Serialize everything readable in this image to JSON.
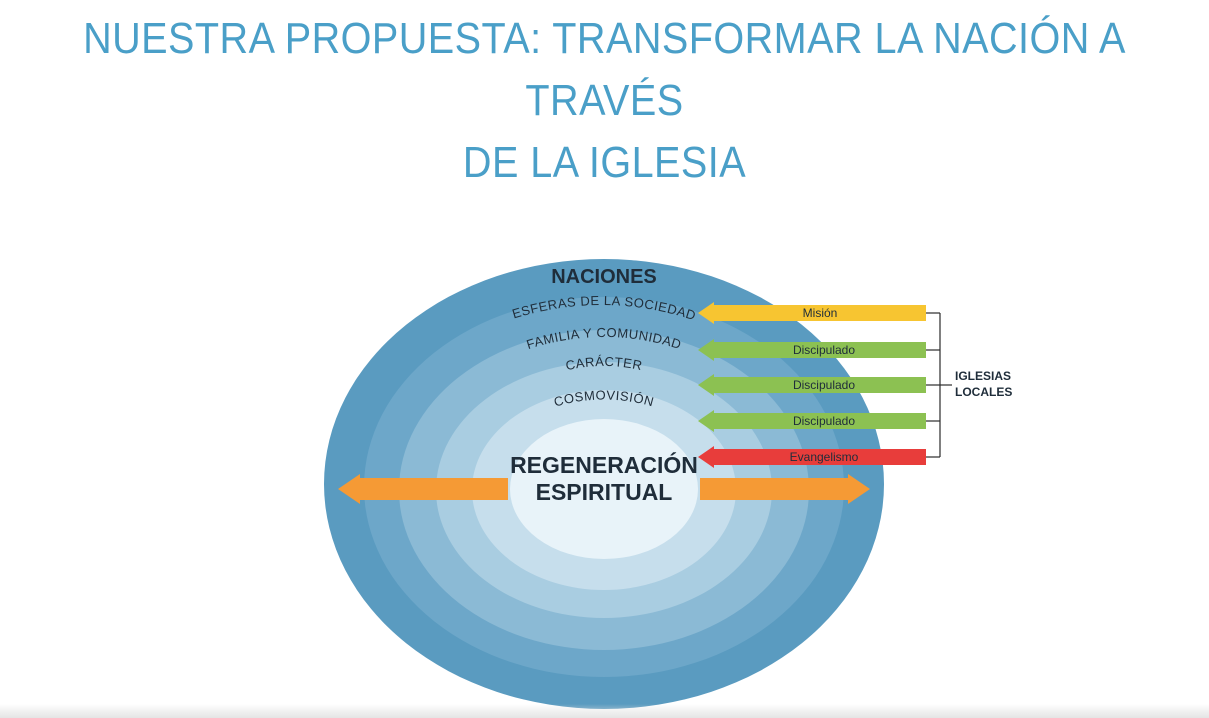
{
  "title": {
    "line1": "NUESTRA PROPUESTA: TRANSFORMAR LA NACIÓN A TRAVÉS",
    "line2": "DE LA IGLESIA"
  },
  "diagram": {
    "rings": [
      {
        "label": "NACIONES",
        "color": "#5a9bc0"
      },
      {
        "label": "ESFERAS DE LA SOCIEDAD",
        "color": "#6da7c9"
      },
      {
        "label": "FAMILIA Y COMUNIDAD",
        "color": "#8bbad5"
      },
      {
        "label": "CARÁCTER",
        "color": "#a9cde1"
      },
      {
        "label": "COSMOVISIÓN",
        "color": "#c6deec"
      }
    ],
    "core": {
      "line1": "REGENERACIÓN",
      "line2": "ESPIRITUAL",
      "color": "#e8f3f9"
    },
    "arrows": [
      {
        "label": "Misión",
        "color": "#f7c531"
      },
      {
        "label": "Discipulado",
        "color": "#8cc152"
      },
      {
        "label": "Discipulado",
        "color": "#8cc152"
      },
      {
        "label": "Discipulado",
        "color": "#8cc152"
      },
      {
        "label": "Evangelismo",
        "color": "#e83d3b"
      }
    ],
    "churches": {
      "line1": "IGLESIAS",
      "line2": "LOCALES"
    },
    "outward_arrow_color": "#f59a35"
  }
}
